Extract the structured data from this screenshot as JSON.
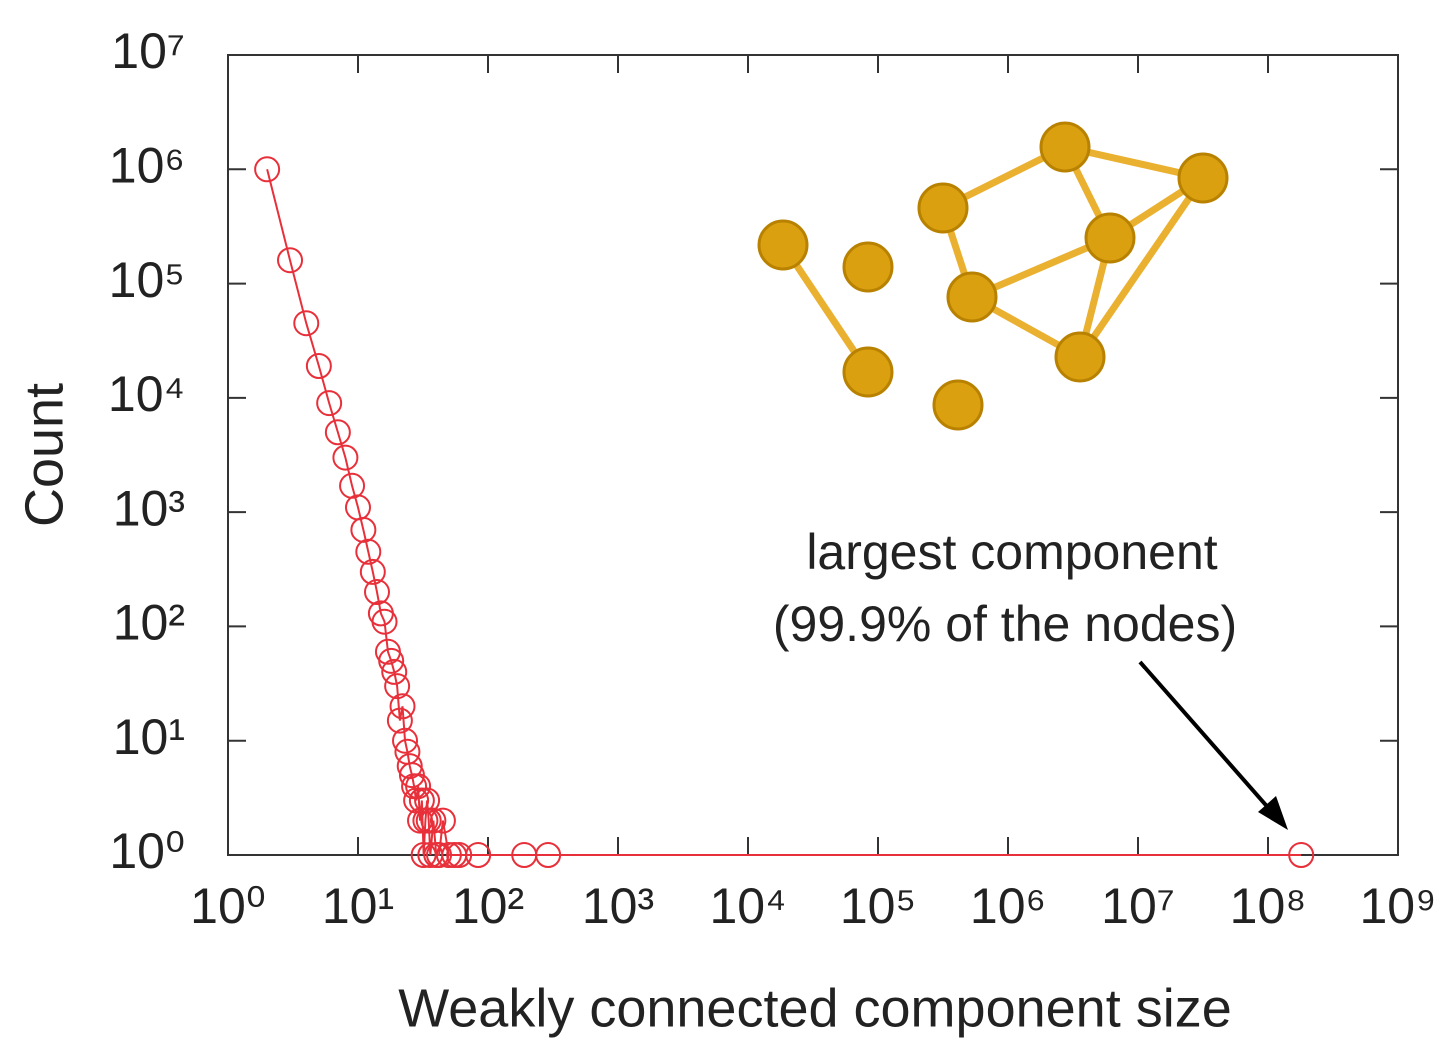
{
  "chart_data": {
    "type": "line",
    "xlabel": "Weakly connected component size",
    "ylabel": "Count",
    "annotation": [
      "largest component",
      "(99.9% of the nodes)"
    ],
    "xscale": "log",
    "yscale": "log",
    "xlim": [
      1,
      1000000000
    ],
    "ylim": [
      1,
      10000000
    ],
    "xticks": [
      {
        "value": 1,
        "label": "10⁰"
      },
      {
        "value": 10,
        "label": "10¹"
      },
      {
        "value": 100,
        "label": "10²"
      },
      {
        "value": 1000,
        "label": "10³"
      },
      {
        "value": 10000,
        "label": "10⁴"
      },
      {
        "value": 100000,
        "label": "10⁵"
      },
      {
        "value": 1000000,
        "label": "10⁶"
      },
      {
        "value": 10000000,
        "label": "10⁷"
      },
      {
        "value": 100000000,
        "label": "10⁸"
      },
      {
        "value": 1000000000,
        "label": "10⁹"
      }
    ],
    "yticks": [
      {
        "value": 1,
        "label": "10⁰"
      },
      {
        "value": 10,
        "label": "10¹"
      },
      {
        "value": 100,
        "label": "10²"
      },
      {
        "value": 1000,
        "label": "10³"
      },
      {
        "value": 10000,
        "label": "10⁴"
      },
      {
        "value": 100000,
        "label": "10⁵"
      },
      {
        "value": 1000000,
        "label": "10⁶"
      },
      {
        "value": 10000000,
        "label": "10⁷"
      }
    ],
    "color": "#e8303a",
    "x": [
      2,
      3,
      4,
      5,
      6,
      7,
      8,
      9,
      10,
      11,
      12,
      13,
      14,
      15,
      16,
      17,
      18,
      19,
      20,
      21,
      22,
      23,
      24,
      25,
      26,
      27,
      28,
      29,
      30,
      31,
      32,
      33,
      34,
      35,
      36,
      38,
      40,
      42,
      45,
      50,
      55,
      60,
      84,
      190,
      290,
      180000000
    ],
    "values": [
      1000000,
      160000,
      45000,
      19000,
      9000,
      5000,
      3000,
      1700,
      1100,
      700,
      450,
      300,
      200,
      130,
      110,
      60,
      50,
      40,
      30,
      15,
      20,
      10,
      8,
      6,
      5,
      4,
      3,
      4,
      2,
      3,
      1,
      2,
      3,
      2,
      1,
      2,
      1,
      1,
      2,
      1,
      1,
      1,
      1,
      1,
      1,
      1
    ]
  }
}
